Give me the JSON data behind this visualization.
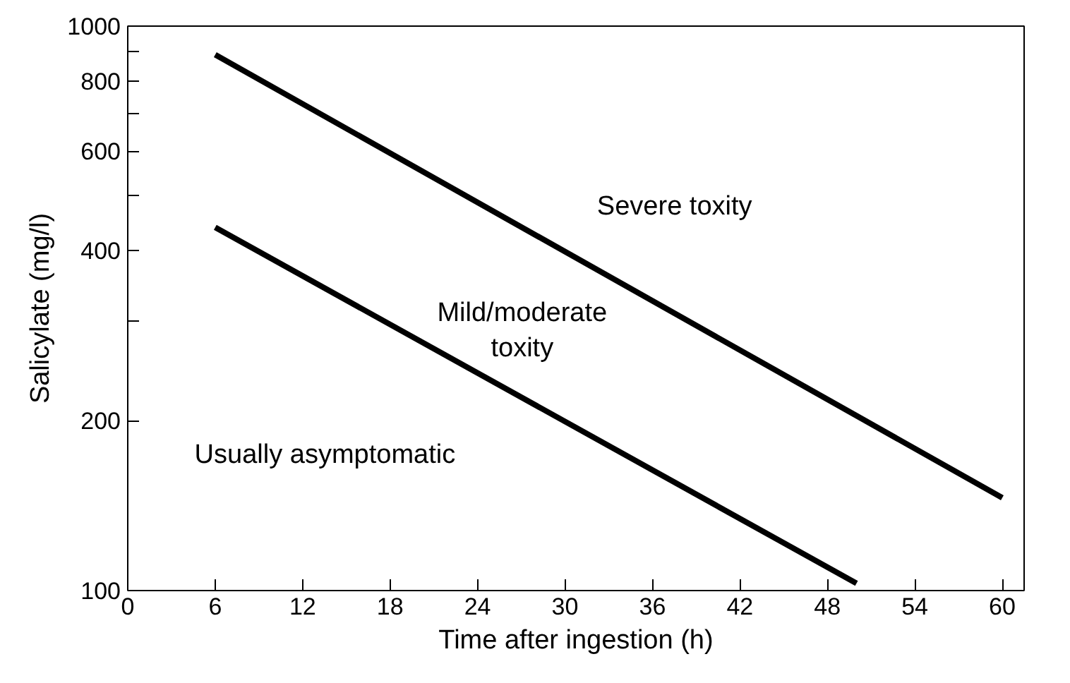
{
  "chart_data": {
    "type": "line",
    "xlabel": "Time after ingestion (h)",
    "ylabel": "Salicylate (mg/l)",
    "series": [
      {
        "color": "#000000",
        "x": [
          6,
          60
        ],
        "values": [
          890,
          146
        ]
      },
      {
        "color": "#000000",
        "x": [
          6,
          50
        ],
        "values": [
          440,
          103
        ]
      }
    ],
    "xlim": [
      0,
      61.5
    ],
    "xticks": [
      0,
      6,
      12,
      18,
      24,
      30,
      36,
      42,
      48,
      54,
      60
    ],
    "ylim": [
      100,
      1000
    ],
    "yticks": [
      100,
      200,
      {
        "value": 300,
        "label": null
      },
      400,
      {
        "value": 500,
        "label": null
      },
      600,
      {
        "value": 700,
        "label": null
      },
      800,
      {
        "value": 900,
        "label": null
      },
      1000
    ],
    "log": true,
    "grid": false,
    "marker": "none",
    "line_style": "solid",
    "annotations": [
      "Severe toxity",
      "Mild/moderate\ntoxity",
      "Usually asymptomatic"
    ]
  }
}
